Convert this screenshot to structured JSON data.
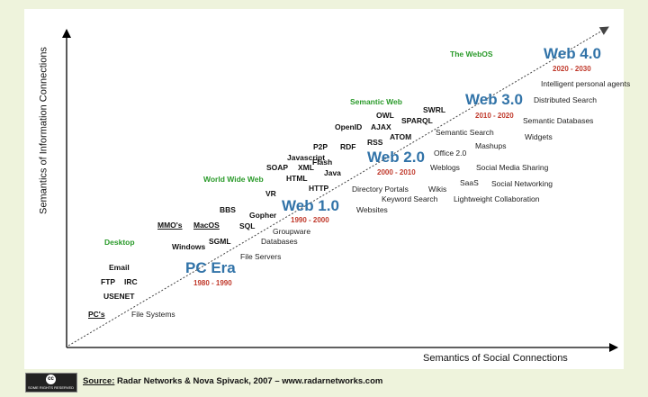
{
  "axes": {
    "y_label": "Semantics of Information Connections",
    "x_label": "Semantics of Social Connections"
  },
  "eras": [
    {
      "name": "PC Era",
      "years": "1980 - 1990"
    },
    {
      "name": "Web 1.0",
      "years": "1990 - 2000"
    },
    {
      "name": "Web 2.0",
      "years": "2000 - 2010"
    },
    {
      "name": "Web 3.0",
      "years": "2010 - 2020"
    },
    {
      "name": "Web 4.0",
      "years": "2020 - 2030"
    }
  ],
  "categories": [
    "Desktop",
    "World Wide Web",
    "Semantic Web",
    "The WebOS"
  ],
  "technologies": [
    "Email",
    "FTP",
    "IRC",
    "USENET",
    "PC's",
    "Windows",
    "MMO's",
    "MacOS",
    "SGML",
    "BBS",
    "Gopher",
    "SQL",
    "VR",
    "HTTP",
    "HTML",
    "Java",
    "SOAP",
    "XML",
    "Javascript",
    "Flash",
    "P2P",
    "RDF",
    "RSS",
    "OpenID",
    "AJAX",
    "ATOM",
    "OWL",
    "SPARQL",
    "SWRL"
  ],
  "applications": [
    "File Systems",
    "File Servers",
    "Databases",
    "Groupware",
    "Websites",
    "Keyword Search",
    "Directory Portals",
    "Wikis",
    "Weblogs",
    "Office 2.0",
    "Mashups",
    "Semantic Search",
    "SaaS",
    "Social Networking",
    "Social Media Sharing",
    "Lightweight Collaboration",
    "Widgets",
    "Semantic Databases",
    "Distributed Search",
    "Intelligent personal agents"
  ],
  "footer": {
    "badge": "SOME RIGHTS RESERVED",
    "badge_symbol": "cc",
    "source_label": "Source:",
    "source_text": "Radar Networks & Nova Spivack, 2007 – www.radarnetworks.com"
  }
}
